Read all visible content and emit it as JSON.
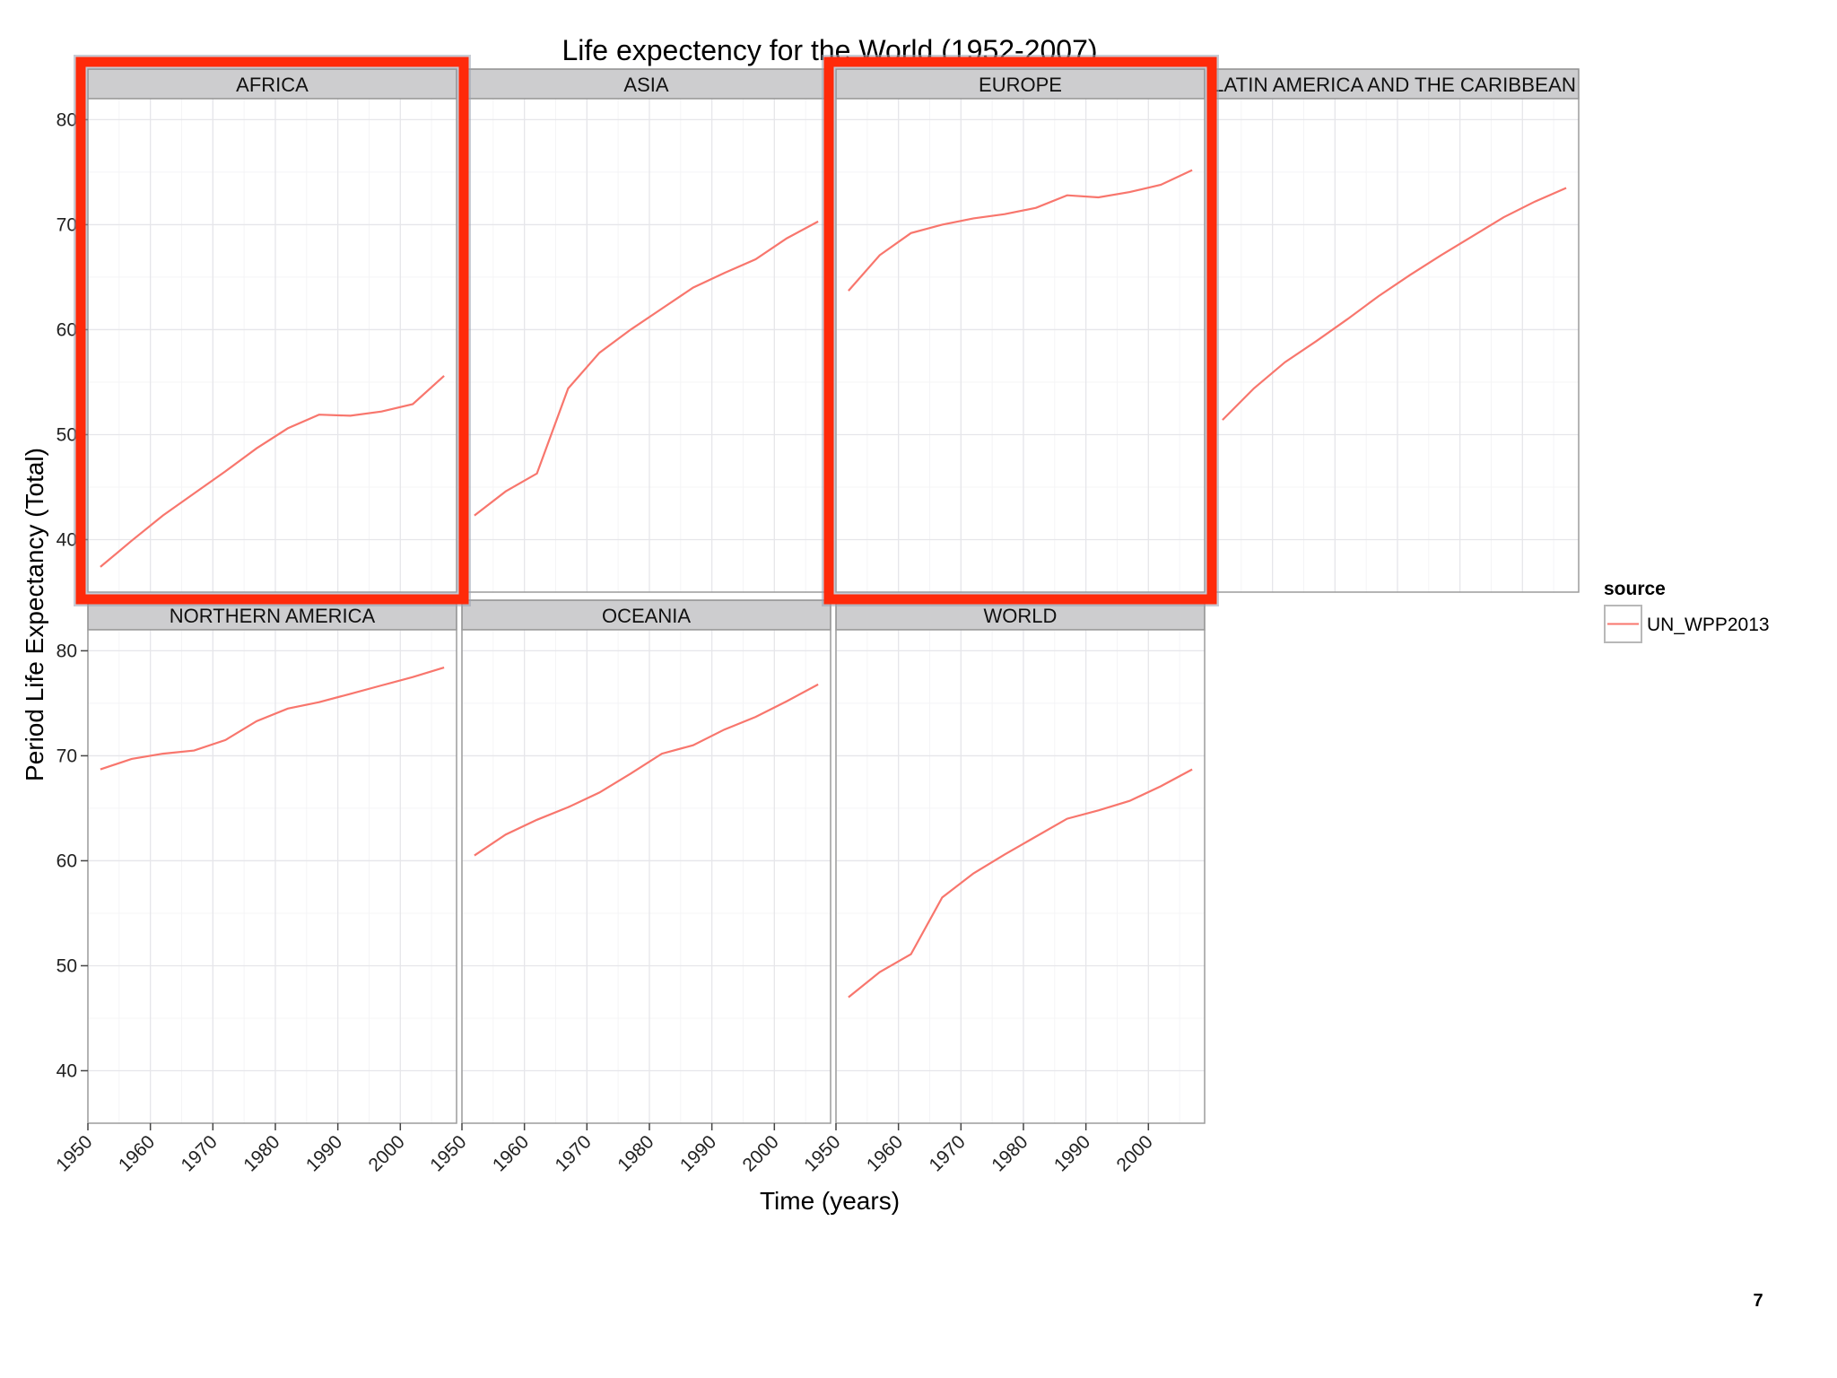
{
  "chart_data": {
    "type": "line",
    "title": "Life expectency for the World (1952-2007)",
    "xlabel": "Time (years)",
    "ylabel": "Period Life Expectancy (Total)",
    "xlim": [
      1950,
      2009
    ],
    "ylim": [
      35,
      82
    ],
    "x_ticks": [
      1950,
      1960,
      1970,
      1980,
      1990,
      2000
    ],
    "y_ticks": [
      40,
      50,
      60,
      70,
      80
    ],
    "grid": true,
    "legend": {
      "title": "source",
      "placement": "right",
      "entries": [
        "UN_WPP2013"
      ]
    },
    "x": [
      1952,
      1957,
      1962,
      1967,
      1972,
      1977,
      1982,
      1987,
      1992,
      1997,
      2002,
      2007
    ],
    "line_color": "#F8766D",
    "panels": [
      {
        "name": "AFRICA",
        "values": [
          37.4,
          39.9,
          42.3,
          44.4,
          46.5,
          48.7,
          50.6,
          51.9,
          51.8,
          52.2,
          52.9,
          55.6
        ]
      },
      {
        "name": "ASIA",
        "values": [
          42.3,
          44.6,
          46.3,
          54.4,
          57.8,
          60.0,
          62.0,
          64.0,
          65.4,
          66.7,
          68.7,
          70.3
        ]
      },
      {
        "name": "EUROPE",
        "values": [
          63.7,
          67.1,
          69.2,
          70.0,
          70.6,
          71.0,
          71.6,
          72.8,
          72.6,
          73.1,
          73.8,
          75.2
        ]
      },
      {
        "name": "LATIN AMERICA AND THE CARIBBEAN",
        "values": [
          51.4,
          54.4,
          56.9,
          58.9,
          61.0,
          63.2,
          65.2,
          67.1,
          68.9,
          70.7,
          72.2,
          73.5
        ]
      },
      {
        "name": "NORTHERN AMERICA",
        "values": [
          68.7,
          69.7,
          70.2,
          70.5,
          71.5,
          73.3,
          74.5,
          75.1,
          75.9,
          76.7,
          77.5,
          78.4
        ]
      },
      {
        "name": "OCEANIA",
        "values": [
          60.5,
          62.5,
          63.9,
          65.1,
          66.5,
          68.3,
          70.2,
          71.0,
          72.5,
          73.7,
          75.2,
          76.8
        ]
      },
      {
        "name": "WORLD",
        "values": [
          47.0,
          49.4,
          51.1,
          56.5,
          58.8,
          60.6,
          62.3,
          64.0,
          64.8,
          65.7,
          67.1,
          68.7
        ]
      }
    ],
    "highlighted_panels": [
      "AFRICA",
      "EUROPE"
    ],
    "highlight_color": "#FF2A0A"
  },
  "page_number": "7"
}
